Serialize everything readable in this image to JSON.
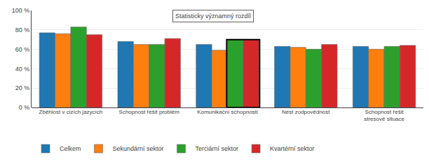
{
  "chart_data": {
    "type": "bar",
    "categories": [
      "Zběhlost v cizích jazycích",
      "Schopnost řešit problém",
      "Komunikační schopnosti",
      "Nést zodpovědnost",
      "Schopnost řešit\nstresové situace"
    ],
    "series": [
      {
        "name": "Celkem",
        "values": [
          77,
          68,
          65,
          63,
          63
        ]
      },
      {
        "name": "Sekundární sektor",
        "values": [
          76,
          65,
          59,
          62,
          60
        ]
      },
      {
        "name": "Terciární sektor",
        "values": [
          83,
          65,
          70,
          60,
          63
        ]
      },
      {
        "name": "Kvartérní sektor",
        "values": [
          75,
          71,
          70,
          65,
          64
        ]
      }
    ],
    "annotations": [
      "Statisticky významný rozdíl"
    ],
    "ylim": [
      0,
      100
    ],
    "yticks": [
      {
        "value": 0,
        "label": "0 %"
      },
      {
        "value": 20,
        "label": "20 %"
      },
      {
        "value": 40,
        "label": "40 %"
      },
      {
        "value": 60,
        "label": "60 %"
      },
      {
        "value": 80,
        "label": "80 %"
      },
      {
        "value": 100,
        "label": "100 %"
      }
    ],
    "grid": true,
    "legend": "bottom"
  }
}
